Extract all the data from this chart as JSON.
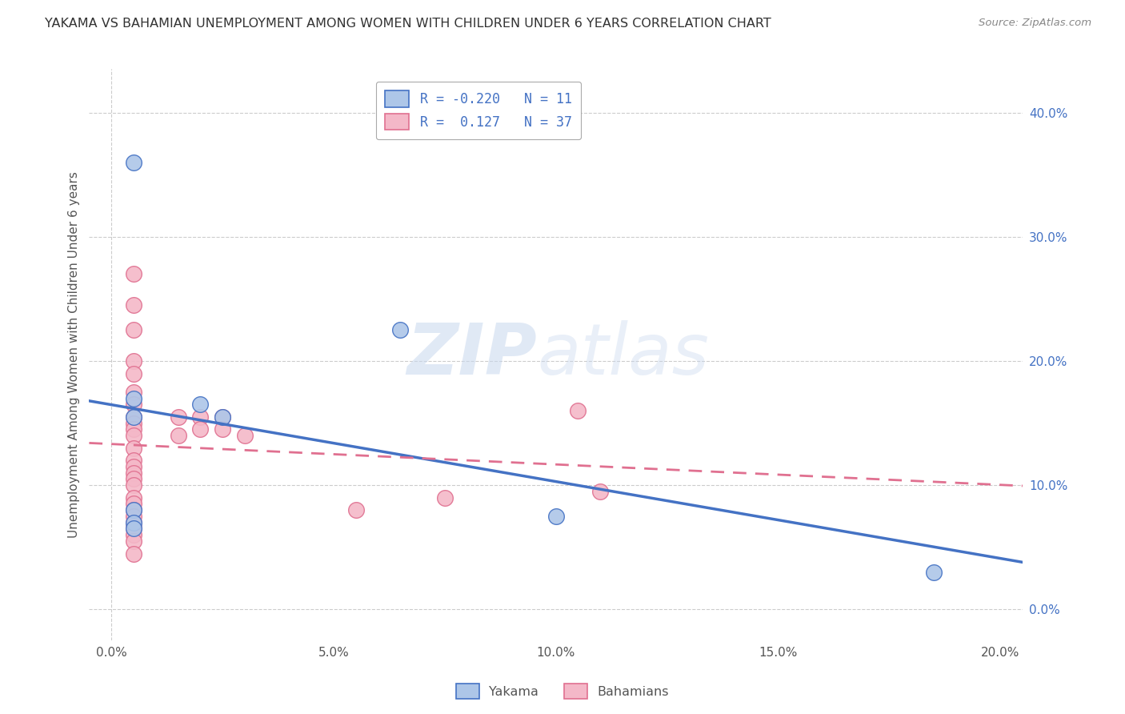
{
  "title": "YAKAMA VS BAHAMIAN UNEMPLOYMENT AMONG WOMEN WITH CHILDREN UNDER 6 YEARS CORRELATION CHART",
  "source": "Source: ZipAtlas.com",
  "ylabel": "Unemployment Among Women with Children Under 6 years",
  "watermark_zip": "ZIP",
  "watermark_atlas": "atlas",
  "yakama_points": [
    [
      0.005,
      0.36
    ],
    [
      0.005,
      0.17
    ],
    [
      0.005,
      0.155
    ],
    [
      0.02,
      0.165
    ],
    [
      0.025,
      0.155
    ],
    [
      0.065,
      0.225
    ],
    [
      0.005,
      0.08
    ],
    [
      0.005,
      0.07
    ],
    [
      0.005,
      0.065
    ],
    [
      0.1,
      0.075
    ],
    [
      0.185,
      0.03
    ]
  ],
  "bahamian_points": [
    [
      0.005,
      0.27
    ],
    [
      0.005,
      0.245
    ],
    [
      0.005,
      0.225
    ],
    [
      0.005,
      0.2
    ],
    [
      0.005,
      0.19
    ],
    [
      0.005,
      0.175
    ],
    [
      0.005,
      0.165
    ],
    [
      0.005,
      0.155
    ],
    [
      0.005,
      0.15
    ],
    [
      0.005,
      0.145
    ],
    [
      0.005,
      0.14
    ],
    [
      0.005,
      0.13
    ],
    [
      0.005,
      0.12
    ],
    [
      0.005,
      0.115
    ],
    [
      0.005,
      0.11
    ],
    [
      0.005,
      0.105
    ],
    [
      0.005,
      0.1
    ],
    [
      0.005,
      0.09
    ],
    [
      0.005,
      0.085
    ],
    [
      0.005,
      0.08
    ],
    [
      0.005,
      0.075
    ],
    [
      0.005,
      0.07
    ],
    [
      0.005,
      0.065
    ],
    [
      0.005,
      0.06
    ],
    [
      0.005,
      0.055
    ],
    [
      0.005,
      0.045
    ],
    [
      0.015,
      0.155
    ],
    [
      0.015,
      0.14
    ],
    [
      0.02,
      0.155
    ],
    [
      0.02,
      0.145
    ],
    [
      0.025,
      0.155
    ],
    [
      0.025,
      0.145
    ],
    [
      0.03,
      0.14
    ],
    [
      0.055,
      0.08
    ],
    [
      0.075,
      0.09
    ],
    [
      0.105,
      0.16
    ],
    [
      0.11,
      0.095
    ]
  ],
  "yakama_R": -0.22,
  "yakama_N": 11,
  "bahamian_R": 0.127,
  "bahamian_N": 37,
  "yakama_color": "#adc6e8",
  "yakama_edge_color": "#4472c4",
  "bahamian_color": "#f4b8c8",
  "bahamian_edge_color": "#e07090",
  "xlim": [
    -0.005,
    0.205
  ],
  "ylim": [
    -0.025,
    0.435
  ],
  "xticks": [
    0.0,
    0.05,
    0.1,
    0.15,
    0.2
  ],
  "xtick_labels": [
    "0.0%",
    "5.0%",
    "10.0%",
    "15.0%",
    "20.0%"
  ],
  "yticks_right": [
    0.0,
    0.1,
    0.2,
    0.3,
    0.4
  ],
  "ytick_labels_right": [
    "0.0%",
    "10.0%",
    "20.0%",
    "30.0%",
    "40.0%"
  ],
  "background_color": "#ffffff",
  "grid_color": "#cccccc"
}
